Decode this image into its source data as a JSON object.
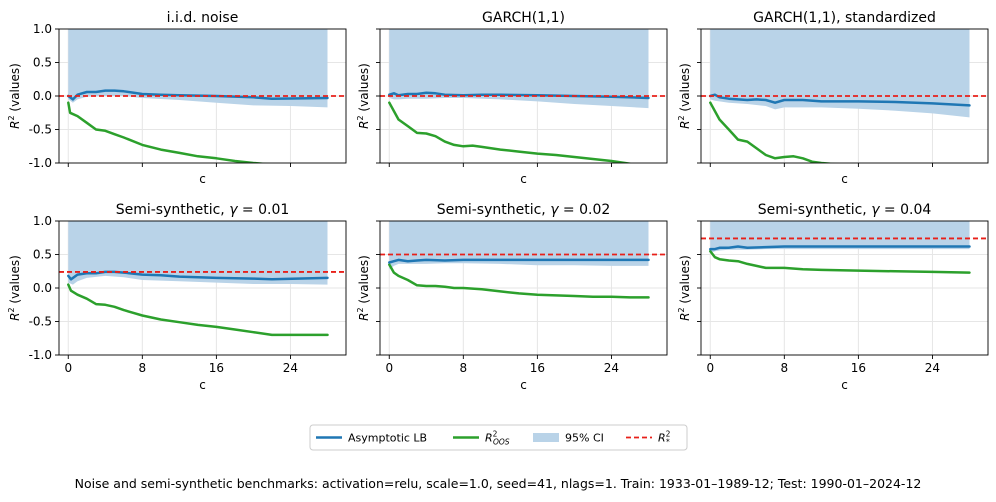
{
  "chart_data": [
    {
      "type": "line",
      "title": "i.i.d. noise",
      "xlabel": "c",
      "ylabel": "R^2 (values)",
      "ylim": [
        -1.0,
        1.0
      ],
      "xlim": [
        -1,
        30
      ],
      "yticks": [
        "1.0",
        "0.5",
        "0.0",
        "-0.5",
        "-1.0"
      ],
      "xticks": [],
      "r2_star": 0.0,
      "series": [
        {
          "name": "Asymptotic LB",
          "x": [
            0,
            0.5,
            1,
            2,
            3,
            4,
            5,
            6,
            8,
            10,
            12,
            16,
            20,
            22,
            28
          ],
          "values": [
            0.0,
            -0.05,
            0.02,
            0.06,
            0.06,
            0.08,
            0.08,
            0.07,
            0.03,
            0.02,
            0.01,
            0.0,
            -0.02,
            -0.04,
            -0.03
          ]
        },
        {
          "name": "R^2_OOS",
          "x": [
            0,
            0.2,
            1,
            2,
            3,
            4,
            5,
            6,
            8,
            10,
            12,
            14,
            16,
            18,
            20,
            21,
            22
          ],
          "values": [
            -0.1,
            -0.25,
            -0.3,
            -0.4,
            -0.5,
            -0.52,
            -0.57,
            -0.62,
            -0.73,
            -0.8,
            -0.85,
            -0.9,
            -0.93,
            -0.97,
            -1.0,
            -1.01,
            -1.02
          ]
        },
        {
          "name": "95% CI",
          "x": [
            0,
            0.5,
            1,
            2,
            4,
            6,
            8,
            12,
            16,
            20,
            24,
            28
          ],
          "upper": [
            1.0,
            1.0,
            1.0,
            1.0,
            1.0,
            1.0,
            1.0,
            1.0,
            1.0,
            1.0,
            1.0,
            1.0
          ],
          "lower": [
            -0.05,
            -0.1,
            -0.05,
            -0.01,
            0.0,
            0.0,
            -0.03,
            -0.06,
            -0.1,
            -0.14,
            -0.15,
            -0.17
          ]
        }
      ]
    },
    {
      "type": "line",
      "title": "GARCH(1,1)",
      "xlabel": "c",
      "ylabel": "R^2 (values)",
      "ylim": [
        -1.0,
        1.0
      ],
      "xlim": [
        -1,
        30
      ],
      "yticks": [
        "",
        "",
        "",
        "",
        ""
      ],
      "xticks": [],
      "r2_star": 0.0,
      "series": [
        {
          "name": "Asymptotic LB",
          "x": [
            0,
            0.5,
            1,
            2,
            3,
            4,
            5,
            6,
            8,
            10,
            12,
            16,
            20,
            24,
            28
          ],
          "values": [
            0.02,
            0.04,
            0.01,
            0.03,
            0.03,
            0.05,
            0.04,
            0.02,
            0.01,
            0.02,
            0.02,
            0.01,
            0.0,
            -0.01,
            -0.03
          ]
        },
        {
          "name": "R^2_OOS",
          "x": [
            0,
            1,
            2,
            3,
            4,
            5,
            6,
            7,
            8,
            9,
            10,
            12,
            14,
            16,
            18,
            20,
            22,
            24,
            26
          ],
          "values": [
            -0.1,
            -0.35,
            -0.45,
            -0.55,
            -0.56,
            -0.6,
            -0.68,
            -0.73,
            -0.75,
            -0.74,
            -0.76,
            -0.8,
            -0.83,
            -0.86,
            -0.88,
            -0.91,
            -0.94,
            -0.97,
            -1.01
          ]
        },
        {
          "name": "95% CI",
          "x": [
            0,
            0.5,
            1,
            2,
            4,
            6,
            8,
            12,
            16,
            20,
            24,
            28
          ],
          "upper": [
            1.0,
            1.0,
            1.0,
            1.0,
            1.0,
            1.0,
            1.0,
            1.0,
            1.0,
            1.0,
            1.0,
            1.0
          ],
          "lower": [
            -0.03,
            -0.05,
            -0.05,
            -0.04,
            -0.04,
            -0.03,
            -0.03,
            -0.05,
            -0.08,
            -0.12,
            -0.15,
            -0.18
          ]
        }
      ]
    },
    {
      "type": "line",
      "title": "GARCH(1,1), standardized",
      "xlabel": "c",
      "ylabel": "R^2 (values)",
      "ylim": [
        -1.0,
        1.0
      ],
      "xlim": [
        -1,
        30
      ],
      "yticks": [
        "",
        "",
        "",
        "",
        ""
      ],
      "xticks": [],
      "r2_star": 0.0,
      "series": [
        {
          "name": "Asymptotic LB",
          "x": [
            0,
            0.5,
            1,
            2,
            3,
            4,
            5,
            6,
            7,
            8,
            10,
            12,
            16,
            20,
            24,
            28
          ],
          "values": [
            0.0,
            0.02,
            -0.02,
            -0.04,
            -0.05,
            -0.06,
            -0.05,
            -0.06,
            -0.1,
            -0.06,
            -0.06,
            -0.08,
            -0.08,
            -0.09,
            -0.11,
            -0.14
          ]
        },
        {
          "name": "R^2_OOS",
          "x": [
            0,
            1,
            2,
            3,
            4,
            5,
            6,
            7,
            8,
            9,
            10,
            11,
            12,
            13,
            14
          ],
          "values": [
            -0.1,
            -0.35,
            -0.5,
            -0.65,
            -0.68,
            -0.78,
            -0.88,
            -0.93,
            -0.91,
            -0.9,
            -0.93,
            -0.98,
            -1.0,
            -1.01,
            -1.02
          ]
        },
        {
          "name": "95% CI",
          "x": [
            0,
            0.5,
            1,
            2,
            4,
            6,
            7,
            8,
            12,
            16,
            20,
            24,
            28
          ],
          "upper": [
            1.0,
            1.0,
            1.0,
            1.0,
            1.0,
            1.0,
            1.0,
            1.0,
            1.0,
            1.0,
            1.0,
            1.0,
            1.0
          ],
          "lower": [
            -0.05,
            -0.07,
            -0.08,
            -0.1,
            -0.12,
            -0.15,
            -0.2,
            -0.17,
            -0.17,
            -0.19,
            -0.22,
            -0.26,
            -0.32
          ]
        }
      ]
    },
    {
      "type": "line",
      "title": "Semi-synthetic, γ = 0.01",
      "xlabel": "c",
      "ylabel": "R^2 (values)",
      "ylim": [
        -1.0,
        1.0
      ],
      "xlim": [
        -1,
        30
      ],
      "yticks": [
        "1.0",
        "0.5",
        "0.0",
        "-0.5",
        "-1.0"
      ],
      "xticks": [
        "0",
        "8",
        "16",
        "24"
      ],
      "r2_star": 0.24,
      "series": [
        {
          "name": "Asymptotic LB",
          "x": [
            0,
            0.3,
            1,
            2,
            3,
            4,
            5,
            6,
            8,
            10,
            12,
            16,
            20,
            22,
            28
          ],
          "values": [
            0.18,
            0.13,
            0.2,
            0.22,
            0.22,
            0.24,
            0.24,
            0.23,
            0.2,
            0.19,
            0.17,
            0.15,
            0.14,
            0.13,
            0.15
          ]
        },
        {
          "name": "R^2_OOS",
          "x": [
            0,
            0.3,
            1,
            2,
            3,
            4,
            5,
            6,
            7,
            8,
            10,
            12,
            14,
            16,
            18,
            20,
            22,
            24,
            28
          ],
          "values": [
            0.05,
            -0.04,
            -0.1,
            -0.16,
            -0.24,
            -0.25,
            -0.28,
            -0.33,
            -0.37,
            -0.41,
            -0.47,
            -0.51,
            -0.55,
            -0.58,
            -0.62,
            -0.66,
            -0.7,
            -0.7,
            -0.7
          ]
        },
        {
          "name": "95% CI",
          "x": [
            0,
            0.5,
            1,
            2,
            4,
            6,
            8,
            12,
            16,
            20,
            24,
            28
          ],
          "upper": [
            1.0,
            1.0,
            1.0,
            1.0,
            1.0,
            1.0,
            1.0,
            1.0,
            1.0,
            1.0,
            1.0,
            1.0
          ],
          "lower": [
            0.08,
            0.05,
            0.1,
            0.15,
            0.18,
            0.16,
            0.12,
            0.1,
            0.08,
            0.06,
            0.06,
            0.05
          ]
        }
      ]
    },
    {
      "type": "line",
      "title": "Semi-synthetic, γ = 0.02",
      "xlabel": "c",
      "ylabel": "R^2 (values)",
      "ylim": [
        -1.0,
        1.0
      ],
      "xlim": [
        -1,
        30
      ],
      "yticks": [
        "",
        "",
        "",
        "",
        ""
      ],
      "xticks": [
        "0",
        "8",
        "16",
        "24"
      ],
      "r2_star": 0.5,
      "series": [
        {
          "name": "Asymptotic LB",
          "x": [
            0,
            0.5,
            1,
            2,
            3,
            4,
            6,
            8,
            10,
            12,
            16,
            20,
            24,
            28
          ],
          "values": [
            0.38,
            0.4,
            0.42,
            0.4,
            0.41,
            0.42,
            0.41,
            0.42,
            0.42,
            0.42,
            0.42,
            0.42,
            0.42,
            0.42
          ]
        },
        {
          "name": "R^2_OOS",
          "x": [
            0,
            0.5,
            1,
            2,
            3,
            4,
            5,
            6,
            7,
            8,
            10,
            12,
            14,
            16,
            18,
            20,
            22,
            24,
            26,
            28
          ],
          "values": [
            0.35,
            0.23,
            0.18,
            0.12,
            0.04,
            0.03,
            0.03,
            0.02,
            0.0,
            0.0,
            -0.02,
            -0.05,
            -0.08,
            -0.1,
            -0.11,
            -0.12,
            -0.13,
            -0.13,
            -0.14,
            -0.14
          ]
        },
        {
          "name": "95% CI",
          "x": [
            0,
            0.5,
            1,
            2,
            4,
            6,
            8,
            12,
            16,
            20,
            24,
            28
          ],
          "upper": [
            1.0,
            1.0,
            1.0,
            1.0,
            1.0,
            1.0,
            1.0,
            1.0,
            1.0,
            1.0,
            1.0,
            1.0
          ],
          "lower": [
            0.28,
            0.33,
            0.36,
            0.36,
            0.36,
            0.37,
            0.37,
            0.36,
            0.34,
            0.34,
            0.33,
            0.33
          ]
        }
      ]
    },
    {
      "type": "line",
      "title": "Semi-synthetic, γ = 0.04",
      "xlabel": "c",
      "ylabel": "R^2 (values)",
      "ylim": [
        -1.0,
        1.0
      ],
      "xlim": [
        -1,
        30
      ],
      "yticks": [
        "",
        "",
        "",
        "",
        ""
      ],
      "xticks": [
        "0",
        "8",
        "16",
        "24"
      ],
      "r2_star": 0.74,
      "series": [
        {
          "name": "Asymptotic LB",
          "x": [
            0,
            0.5,
            1,
            2,
            3,
            4,
            6,
            8,
            10,
            12,
            16,
            20,
            24,
            28
          ],
          "values": [
            0.58,
            0.58,
            0.6,
            0.6,
            0.62,
            0.6,
            0.61,
            0.62,
            0.62,
            0.62,
            0.62,
            0.62,
            0.62,
            0.62
          ]
        },
        {
          "name": "R^2_OOS",
          "x": [
            0,
            0.5,
            1,
            2,
            3,
            4,
            5,
            6,
            8,
            10,
            12,
            16,
            20,
            24,
            28
          ],
          "values": [
            0.55,
            0.46,
            0.43,
            0.41,
            0.4,
            0.36,
            0.33,
            0.3,
            0.3,
            0.28,
            0.27,
            0.26,
            0.25,
            0.24,
            0.23
          ]
        },
        {
          "name": "95% CI",
          "x": [
            0,
            0.5,
            1,
            2,
            4,
            6,
            8,
            12,
            16,
            20,
            24,
            28
          ],
          "upper": [
            1.0,
            1.0,
            1.0,
            1.0,
            1.0,
            1.0,
            1.0,
            1.0,
            1.0,
            1.0,
            1.0,
            1.0
          ],
          "lower": [
            0.52,
            0.55,
            0.56,
            0.57,
            0.57,
            0.58,
            0.58,
            0.58,
            0.58,
            0.58,
            0.58,
            0.58
          ]
        }
      ]
    }
  ],
  "legend": {
    "lb_label": "Asymptotic LB",
    "oos_label": "R",
    "oos_sup": "2",
    "oos_sub": "OOS",
    "ci_label": "95% CI",
    "star_label": "R",
    "star_sup": "2",
    "star_sub": "*"
  },
  "axis_text": {
    "ylabel_base": "R",
    "ylabel_sup": "2",
    "ylabel_rest": " (values)"
  },
  "caption": "Noise and semi-synthetic benchmarks: activation=relu, scale=1.0, seed=41, nlags=1. Train: 1933-01–1989-12; Test: 1990-01–2024-12",
  "colors": {
    "lb": "#1f77b4",
    "oos": "#2ca02c",
    "ci": "#b9d3e8",
    "star": "#e8201a",
    "grid": "#e6e6e6"
  }
}
